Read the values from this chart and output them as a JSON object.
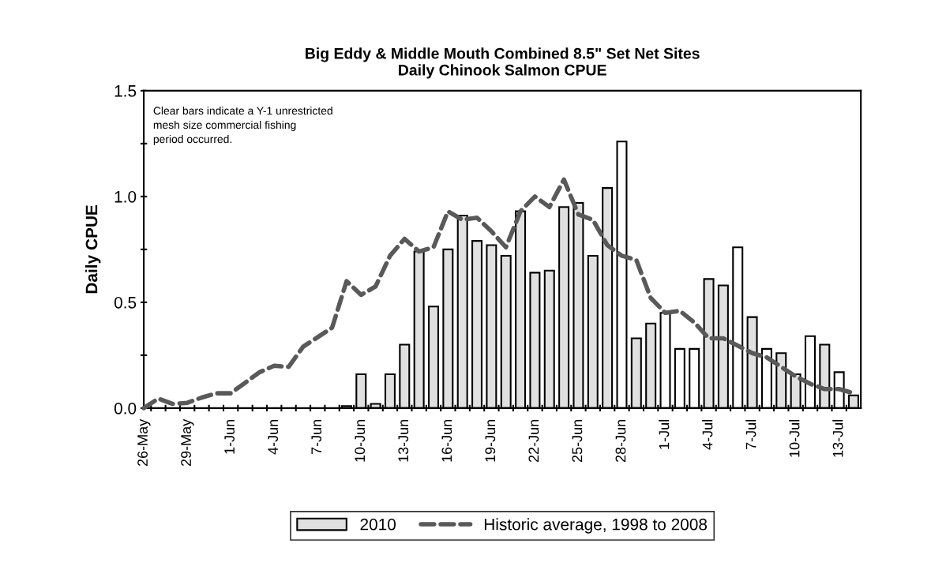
{
  "chart_data": {
    "type": "bar",
    "title": "Big Eddy & Middle Mouth Combined 8.5\" Set Net Sites\nDaily Chinook Salmon CPUE",
    "ylabel": "Daily CPUE",
    "annotations": [
      "Clear bars indicate a Y-1 unrestricted\nmesh size commercial fishing\nperiod occurred."
    ],
    "categories": [
      "26-May",
      null,
      null,
      "29-May",
      null,
      null,
      "1-Jun",
      null,
      null,
      "4-Jun",
      null,
      null,
      "7-Jun",
      null,
      null,
      "10-Jun",
      null,
      null,
      "13-Jun",
      null,
      null,
      "16-Jun",
      null,
      null,
      "19-Jun",
      null,
      null,
      "22-Jun",
      null,
      null,
      "25-Jun",
      null,
      null,
      "28-Jun",
      null,
      null,
      "1-Jul",
      null,
      null,
      "4-Jul",
      null,
      null,
      "7-Jul",
      null,
      null,
      "10-Jul",
      null,
      null,
      "13-Jul",
      null
    ],
    "series": [
      {
        "name": "2010",
        "color": "#e0e0e0",
        "values": [
          null,
          null,
          null,
          null,
          null,
          null,
          null,
          null,
          null,
          null,
          null,
          null,
          null,
          null,
          0.01,
          0.16,
          0.02,
          0.16,
          0.3,
          0.74,
          0.48,
          0.75,
          0.91,
          0.79,
          0.77,
          0.72,
          0.93,
          0.64,
          0.65,
          0.95,
          0.97,
          0.72,
          1.04,
          1.26,
          0.33,
          0.4,
          0.45,
          0.28,
          0.28,
          0.61,
          0.58,
          0.76,
          0.43,
          0.28,
          0.26,
          0.16,
          0.34,
          0.3,
          0.17,
          0.06
        ],
        "colors": [
          "#e0e0e0",
          "#e0e0e0",
          "#e0e0e0",
          "#e0e0e0",
          "#e0e0e0",
          "#e0e0e0",
          "#e0e0e0",
          "#e0e0e0",
          "#e0e0e0",
          "#e0e0e0",
          "#e0e0e0",
          "#e0e0e0",
          "#e0e0e0",
          "#e0e0e0",
          "#e0e0e0",
          "#e0e0e0",
          "#e0e0e0",
          "#e0e0e0",
          "#e0e0e0",
          "#e0e0e0",
          "#e0e0e0",
          "#e0e0e0",
          "#e0e0e0",
          "#e0e0e0",
          "#e0e0e0",
          "#e0e0e0",
          "#e0e0e0",
          "#e0e0e0",
          "#e0e0e0",
          "#e0e0e0",
          "#e0e0e0",
          "#e0e0e0",
          "#e0e0e0",
          "#ffffff",
          "#e0e0e0",
          "#e0e0e0",
          "#ffffff",
          "#ffffff",
          "#ffffff",
          "#e0e0e0",
          "#e0e0e0",
          "#ffffff",
          "#e0e0e0",
          "#ffffff",
          "#e0e0e0",
          "#e0e0e0",
          "#ffffff",
          "#e0e0e0",
          "#ffffff",
          "#e0e0e0"
        ]
      },
      {
        "name": "Historic average, 1998 to 2008",
        "type": "line",
        "color": "#595959",
        "line_style": "dashed",
        "values": [
          0,
          0.045,
          0.02,
          0.025,
          0.05,
          0.07,
          0.07,
          0.12,
          0.17,
          0.2,
          0.195,
          0.29,
          0.335,
          0.38,
          0.6,
          0.535,
          0.575,
          0.72,
          0.8,
          0.74,
          0.76,
          0.93,
          0.89,
          0.9,
          0.835,
          0.76,
          0.93,
          1.0,
          0.95,
          1.08,
          0.915,
          0.89,
          0.77,
          0.72,
          0.7,
          0.52,
          0.45,
          0.46,
          0.405,
          0.33,
          0.33,
          0.295,
          0.26,
          0.24,
          0.195,
          0.15,
          0.115,
          0.09,
          0.09,
          0.07
        ]
      }
    ],
    "ylim": [
      0,
      1.5
    ],
    "yticks": [
      {
        "value": 0,
        "label": "0.0"
      },
      {
        "value": 0.25,
        "label": null
      },
      {
        "value": 0.5,
        "label": "0.5"
      },
      {
        "value": 0.75,
        "label": null
      },
      {
        "value": 1.0,
        "label": "1.0"
      },
      {
        "value": 1.25,
        "label": null
      },
      {
        "value": 1.5,
        "label": "1.5"
      }
    ],
    "grid": false,
    "legend": "bottom"
  }
}
